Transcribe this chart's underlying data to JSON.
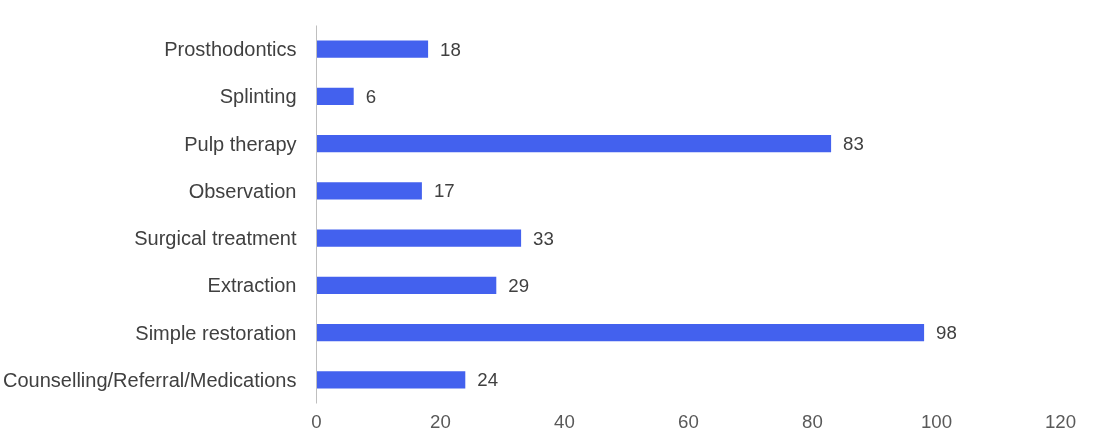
{
  "chart_data": {
    "type": "bar",
    "orientation": "horizontal",
    "categories": [
      "Prosthodontics",
      "Splinting",
      "Pulp therapy",
      "Observation",
      "Surgical treatment",
      "Extraction",
      "Simple restoration",
      "Counselling/Referral/Medications"
    ],
    "values": [
      18,
      6,
      83,
      17,
      33,
      29,
      98,
      24
    ],
    "color": "#4361ee",
    "xlim": [
      0,
      120
    ],
    "xticks": [
      0,
      20,
      40,
      60,
      80,
      100,
      120
    ],
    "data_labels": true,
    "grid": false
  }
}
